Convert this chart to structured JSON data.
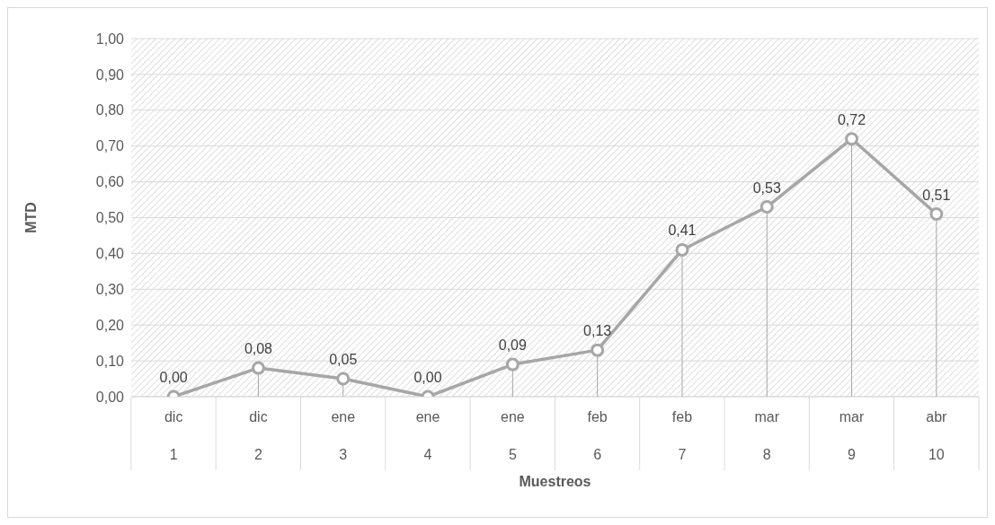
{
  "chart_data": {
    "type": "line",
    "xlabel": "Muestreos",
    "ylabel": "MTD",
    "categories": [
      "dic\n1",
      "dic\n2",
      "ene\n3",
      "ene\n4",
      "ene\n5",
      "feb\n6",
      "feb\n7",
      "mar\n8",
      "mar\n9",
      "abr\n10"
    ],
    "series": [
      {
        "color": "#a6a6a6",
        "values": [
          0,
          0.08,
          0.05,
          0,
          0.09,
          0.13,
          0.41,
          0.53,
          0.72,
          0.51
        ],
        "value_labels": [
          "0,00",
          "0,08",
          "0,05",
          "0,00",
          "0,09",
          "0,13",
          "0,41",
          "0,53",
          "0,72",
          "0,51"
        ]
      }
    ],
    "ylim": [
      0,
      1
    ],
    "yticks": [
      {
        "value": 0,
        "label": "0,00"
      },
      {
        "value": 0.1,
        "label": "0,10"
      },
      {
        "value": 0.2,
        "label": "0,20"
      },
      {
        "value": 0.3,
        "label": "0,30"
      },
      {
        "value": 0.4,
        "label": "0,40"
      },
      {
        "value": 0.5,
        "label": "0,50"
      },
      {
        "value": 0.6,
        "label": "0,60"
      },
      {
        "value": 0.7,
        "label": "0,70"
      },
      {
        "value": 0.8,
        "label": "0,80"
      },
      {
        "value": 0.9,
        "label": "0,90"
      },
      {
        "value": 1,
        "label": "1,00"
      }
    ],
    "grid": "y",
    "marker": "circle",
    "line_style": "solid",
    "legend": false
  }
}
